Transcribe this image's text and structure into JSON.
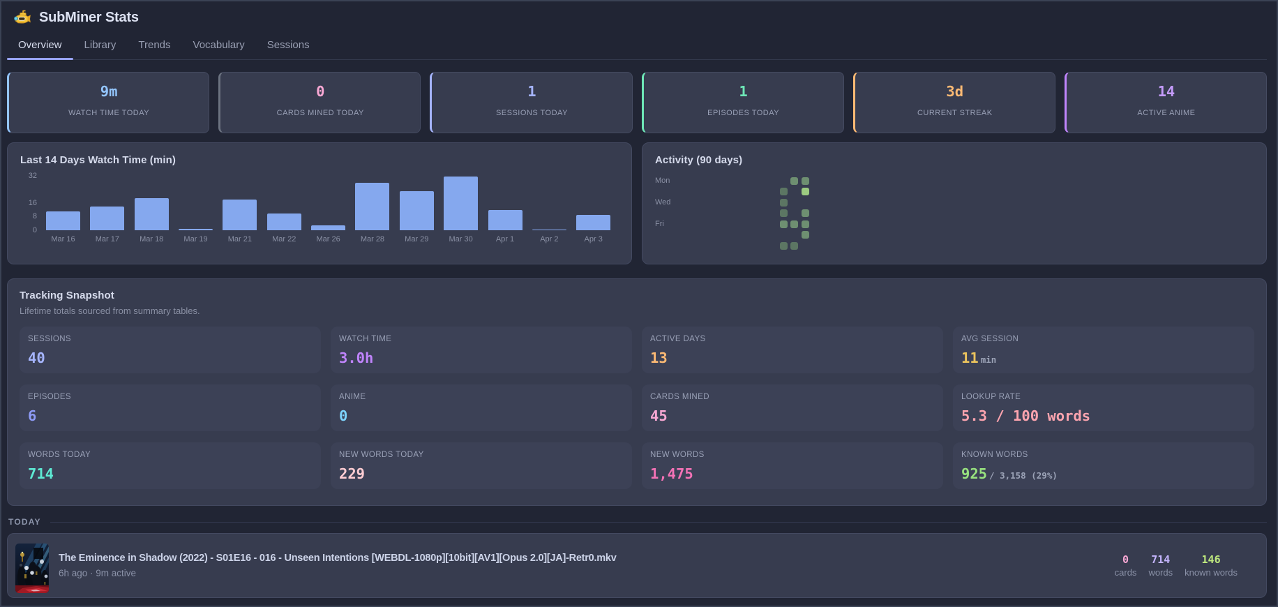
{
  "header": {
    "title": "SubMiner Stats",
    "icon": "submarine-icon"
  },
  "tabs": [
    {
      "label": "Overview",
      "active": true
    },
    {
      "label": "Library",
      "active": false
    },
    {
      "label": "Trends",
      "active": false
    },
    {
      "label": "Vocabulary",
      "active": false
    },
    {
      "label": "Sessions",
      "active": false
    }
  ],
  "stat_cards": [
    {
      "value": "9m",
      "label": "WATCH TIME TODAY",
      "color": "#93c5fd",
      "accent": "#93c5fd"
    },
    {
      "value": "0",
      "label": "CARDS MINED TODAY",
      "color": "#f9a8d4",
      "accent": "#6b7280"
    },
    {
      "value": "1",
      "label": "SESSIONS TODAY",
      "color": "#a5b4fc",
      "accent": "#a5b4fc"
    },
    {
      "value": "1",
      "label": "EPISODES TODAY",
      "color": "#6ee7b7",
      "accent": "#6ee7b7"
    },
    {
      "value": "3d",
      "label": "CURRENT STREAK",
      "color": "#fdba74",
      "accent": "#fdba74"
    },
    {
      "value": "14",
      "label": "ACTIVE ANIME",
      "color": "#c49bfb",
      "accent": "#c084fc"
    }
  ],
  "chart_data": {
    "type": "bar",
    "title": "Last 14 Days Watch Time (min)",
    "categories": [
      "Mar 16",
      "Mar 17",
      "Mar 18",
      "Mar 19",
      "Mar 21",
      "Mar 22",
      "Mar 26",
      "Mar 28",
      "Mar 29",
      "Mar 30",
      "Apr 1",
      "Apr 2",
      "Apr 3"
    ],
    "values": [
      11,
      14,
      19,
      1,
      18,
      10,
      3,
      28,
      23,
      32,
      12,
      0.6,
      9
    ],
    "yticks": [
      0,
      8,
      16,
      32
    ],
    "ylim": [
      0,
      32
    ],
    "xlabel": "",
    "ylabel": "",
    "grid": false,
    "legend": false,
    "bar_color": "#85a8ee"
  },
  "activity": {
    "title": "Activity (90 days)",
    "day_labels": [
      {
        "label": "Mon",
        "row": 0
      },
      {
        "label": "Wed",
        "row": 2
      },
      {
        "label": "Fri",
        "row": 4
      }
    ],
    "rows": 7,
    "cols": 13,
    "level_colors": {
      "1": "#5c7663",
      "2": "#6e8f71",
      "3": "#9ccb81"
    },
    "cells": [
      {
        "col": 11,
        "row": 0,
        "level": 2
      },
      {
        "col": 12,
        "row": 0,
        "level": 2
      },
      {
        "col": 10,
        "row": 1,
        "level": 1
      },
      {
        "col": 12,
        "row": 1,
        "level": 3
      },
      {
        "col": 10,
        "row": 2,
        "level": 1
      },
      {
        "col": 10,
        "row": 3,
        "level": 1
      },
      {
        "col": 12,
        "row": 3,
        "level": 2
      },
      {
        "col": 10,
        "row": 4,
        "level": 2
      },
      {
        "col": 11,
        "row": 4,
        "level": 2
      },
      {
        "col": 12,
        "row": 4,
        "level": 2
      },
      {
        "col": 12,
        "row": 5,
        "level": 2
      },
      {
        "col": 10,
        "row": 6,
        "level": 1
      },
      {
        "col": 11,
        "row": 6,
        "level": 1
      }
    ]
  },
  "snapshot": {
    "title": "Tracking Snapshot",
    "subtitle": "Lifetime totals sourced from summary tables.",
    "items": [
      {
        "label": "SESSIONS",
        "value": "40",
        "suffix": "",
        "color": "#a5b4fc"
      },
      {
        "label": "WATCH TIME",
        "value": "3.0h",
        "suffix": "",
        "color": "#c084fc"
      },
      {
        "label": "ACTIVE DAYS",
        "value": "13",
        "suffix": "",
        "color": "#fdba74"
      },
      {
        "label": "AVG SESSION",
        "value": "11",
        "suffix": "min",
        "color": "#ecc45d"
      },
      {
        "label": "EPISODES",
        "value": "6",
        "suffix": "",
        "color": "#8e9bf7"
      },
      {
        "label": "ANIME",
        "value": "0",
        "suffix": "",
        "color": "#7dd3fc"
      },
      {
        "label": "CARDS MINED",
        "value": "45",
        "suffix": "",
        "color": "#f9a8d4"
      },
      {
        "label": "LOOKUP RATE",
        "value": "5.3 / 100 words",
        "suffix": "",
        "color": "#fda4af"
      },
      {
        "label": "WORDS TODAY",
        "value": "714",
        "suffix": "",
        "color": "#5eead4"
      },
      {
        "label": "NEW WORDS TODAY",
        "value": "229",
        "suffix": "",
        "color": "#fecdd3"
      },
      {
        "label": "NEW WORDS",
        "value": "1,475",
        "suffix": "",
        "color": "#f472b6"
      },
      {
        "label": "KNOWN WORDS",
        "value": "925",
        "suffix": "/ 3,158 (29%)",
        "color": "#98e27f"
      }
    ]
  },
  "today": {
    "heading": "TODAY",
    "session": {
      "title": "The Eminence in Shadow (2022) - S01E16 - 016 - Unseen Intentions [WEBDL-1080p][10bit][AV1][Opus 2.0][JA]-Retr0.mkv",
      "meta": "6h ago · 9m active",
      "thumbnail": "anime-poster-thumbnail",
      "stats": [
        {
          "value": "0",
          "label": "cards",
          "color": "#f9a8d4"
        },
        {
          "value": "714",
          "label": "words",
          "color": "#c4b5fd"
        },
        {
          "value": "146",
          "label": "known words",
          "color": "#bee87e"
        }
      ]
    }
  }
}
